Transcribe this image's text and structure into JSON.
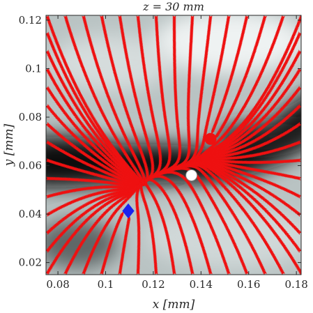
{
  "chart_data": {
    "type": "streamplot",
    "title": "z = 30 mm",
    "xlabel": "x [mm]",
    "ylabel": "y [mm]",
    "xlim": [
      0.075,
      0.182
    ],
    "ylim": [
      0.015,
      0.122
    ],
    "x_ticks": [
      0.08,
      0.1,
      0.12,
      0.14,
      0.16,
      0.18
    ],
    "x_tick_labels": [
      "0.08",
      "0.1",
      "0.12",
      "0.14",
      "0.16",
      "0.18"
    ],
    "y_ticks": [
      0.02,
      0.04,
      0.06,
      0.08,
      0.1,
      0.12
    ],
    "y_tick_labels": [
      "0.02",
      "0.04",
      "0.06",
      "0.08",
      "0.1",
      "0.12"
    ],
    "grid": false,
    "background": "grayscale intensity map with dark band along the stream separatrix",
    "streamline_color": "#ee1111",
    "markers": [
      {
        "x": 0.144,
        "y": 0.071,
        "shape": "circle",
        "color": "#ee1111",
        "edge": "#ee1111"
      },
      {
        "x": 0.136,
        "y": 0.056,
        "shape": "circle",
        "color": "#ffffff",
        "edge": "#888888"
      },
      {
        "x": 0.1095,
        "y": 0.0413,
        "shape": "diamond",
        "color": "#1a22ee",
        "edge": "#1a22ee"
      }
    ]
  }
}
